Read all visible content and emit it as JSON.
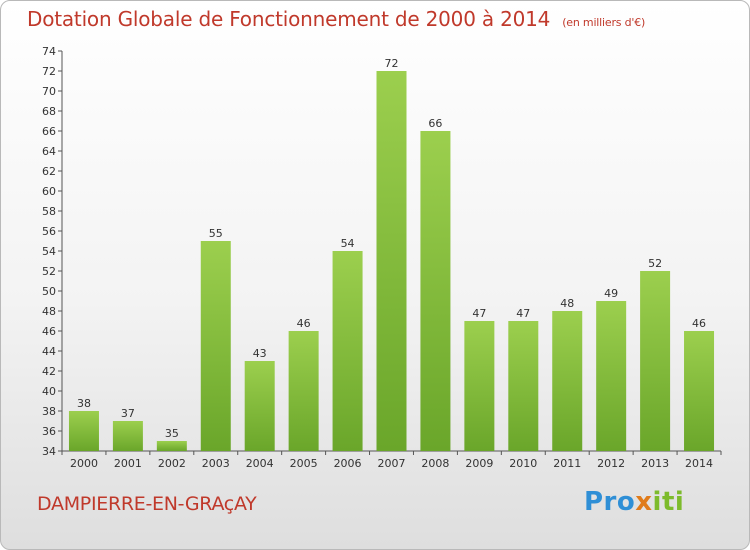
{
  "header": {
    "title": "Dotation Globale de Fonctionnement de 2000 à 2014",
    "unit": "(en milliers d'€)"
  },
  "commune": "DAMPIERRE-EN-GRAçAY",
  "logo": {
    "part1": "Pro",
    "part2": "x",
    "part3": "iti"
  },
  "colors": {
    "bar_top": "#9ccf4e",
    "bar_bottom": "#6aa62a",
    "title": "#c0392b"
  },
  "chart_data": {
    "type": "bar",
    "title": "Dotation Globale de Fonctionnement de 2000 à 2014",
    "categories": [
      "2000",
      "2001",
      "2002",
      "2003",
      "2004",
      "2005",
      "2006",
      "2007",
      "2008",
      "2009",
      "2010",
      "2011",
      "2012",
      "2013",
      "2014"
    ],
    "values": [
      38,
      37,
      35,
      55,
      43,
      46,
      54,
      72,
      66,
      47,
      47,
      48,
      49,
      52,
      46
    ],
    "ylim": [
      34,
      74
    ],
    "yticks": [
      34,
      36,
      38,
      40,
      42,
      44,
      46,
      48,
      50,
      52,
      54,
      56,
      58,
      60,
      62,
      64,
      66,
      68,
      70,
      72,
      74
    ],
    "grid": false,
    "data_labels": true
  }
}
